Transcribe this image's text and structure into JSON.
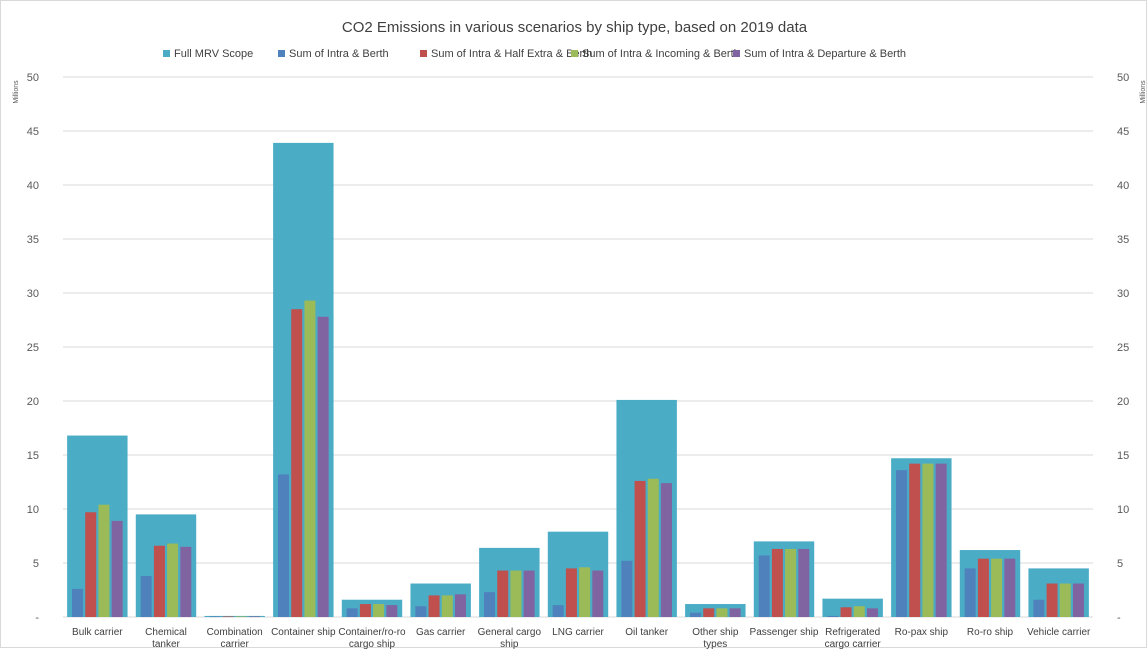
{
  "chart_data": {
    "type": "bar",
    "title": "CO2 Emissions in various scenarios by ship type, based on 2019 data",
    "ylabel": "Millions",
    "ylim": [
      0,
      50
    ],
    "yticks": [
      "-",
      "5",
      "10",
      "15",
      "20",
      "25",
      "30",
      "35",
      "40",
      "45",
      "50"
    ],
    "grid": true,
    "legend_position": "top",
    "categories": [
      [
        "Bulk carrier"
      ],
      [
        "Chemical",
        "tanker"
      ],
      [
        "Combination",
        "carrier"
      ],
      [
        "Container ship"
      ],
      [
        "Container/ro-ro",
        "cargo ship"
      ],
      [
        "Gas carrier"
      ],
      [
        "General cargo",
        "ship"
      ],
      [
        "LNG carrier"
      ],
      [
        "Oil tanker"
      ],
      [
        "Other ship",
        "types"
      ],
      [
        "Passenger ship"
      ],
      [
        "Refrigerated",
        "cargo carrier"
      ],
      [
        "Ro-pax ship"
      ],
      [
        "Ro-ro ship"
      ],
      [
        "Vehicle carrier"
      ]
    ],
    "series": [
      {
        "name": "Full MRV Scope",
        "color": "#4bacc6",
        "values": [
          16.8,
          9.5,
          0.1,
          43.9,
          1.6,
          3.1,
          6.4,
          7.9,
          20.1,
          1.2,
          7.0,
          1.7,
          14.7,
          6.2,
          4.5
        ]
      },
      {
        "name": "Sum of Intra & Berth",
        "color": "#4f81bd",
        "values": [
          2.6,
          3.8,
          0.05,
          13.2,
          0.8,
          1.0,
          2.3,
          1.1,
          5.2,
          0.4,
          5.7,
          0.1,
          13.6,
          4.5,
          1.6
        ]
      },
      {
        "name": "Sum of Intra & Half Extra & Berth",
        "color": "#c0504d",
        "values": [
          9.7,
          6.6,
          0.05,
          28.5,
          1.2,
          2.0,
          4.3,
          4.5,
          12.6,
          0.8,
          6.3,
          0.9,
          14.2,
          5.4,
          3.1
        ]
      },
      {
        "name": "Sum of Intra & Incoming & Berth",
        "color": "#9bbb59",
        "values": [
          10.4,
          6.8,
          0.05,
          29.3,
          1.2,
          2.0,
          4.3,
          4.6,
          12.8,
          0.8,
          6.3,
          1.0,
          14.2,
          5.4,
          3.1
        ]
      },
      {
        "name": "Sum of Intra & Departure & Berth",
        "color": "#8064a2",
        "values": [
          8.9,
          6.5,
          0.05,
          27.8,
          1.1,
          2.1,
          4.3,
          4.3,
          12.4,
          0.8,
          6.3,
          0.8,
          14.2,
          5.4,
          3.1
        ]
      }
    ]
  }
}
